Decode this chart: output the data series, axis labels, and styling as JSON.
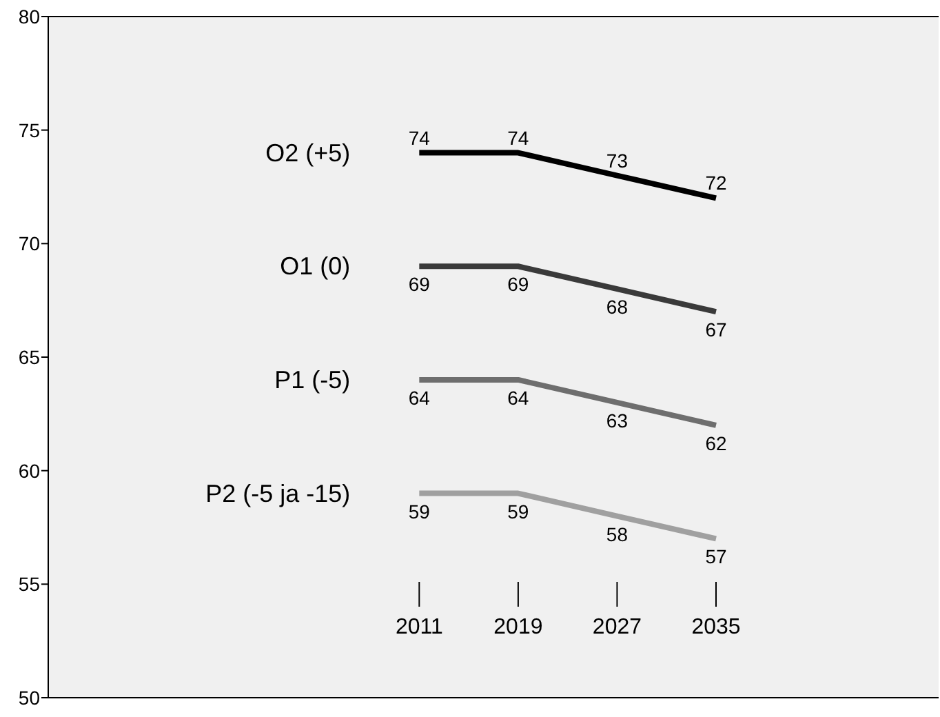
{
  "chart_data": {
    "type": "line",
    "x": [
      2011,
      2019,
      2027,
      2035
    ],
    "xlim": [
      1981,
      2053
    ],
    "xticks": [
      2011,
      2019,
      2027,
      2035
    ],
    "ylim": [
      50,
      80
    ],
    "yticks": [
      50,
      55,
      60,
      65,
      70,
      75,
      80
    ],
    "data_labels": true,
    "grid": false,
    "legend": false,
    "series": [
      {
        "name": "O2 (+5)",
        "color": "#000000",
        "values": [
          74,
          74,
          73,
          72
        ]
      },
      {
        "name": "O1 (0)",
        "color": "#3a3a3a",
        "values": [
          69,
          69,
          68,
          67
        ]
      },
      {
        "name": "P1 (-5)",
        "color": "#6e6e6e",
        "values": [
          64,
          64,
          63,
          62
        ]
      },
      {
        "name": "P2 (-5 ja -15)",
        "color": "#a0a0a0",
        "values": [
          59,
          59,
          58,
          57
        ]
      }
    ]
  }
}
